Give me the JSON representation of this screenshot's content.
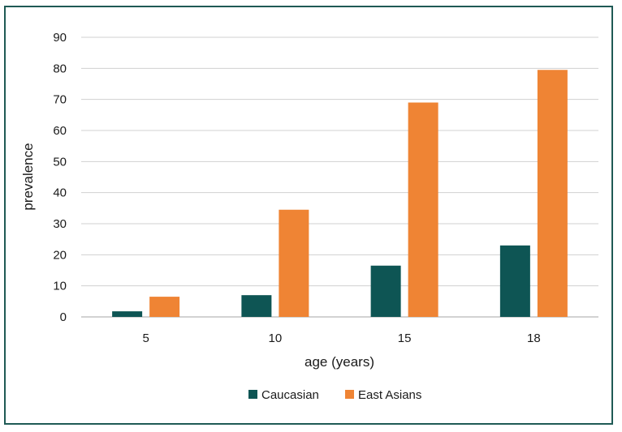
{
  "chart_data": {
    "type": "bar",
    "categories": [
      "5",
      "10",
      "15",
      "18"
    ],
    "series": [
      {
        "name": "Caucasian",
        "color": "#0e5554",
        "values": [
          1.8,
          7,
          16.5,
          23
        ]
      },
      {
        "name": "East Asians",
        "color": "#ef8434",
        "values": [
          6.5,
          34.5,
          69,
          79.5
        ]
      }
    ],
    "xlabel": "age (years)",
    "ylabel": "prevalence",
    "ylim": [
      0,
      90
    ],
    "yticks": [
      "0",
      "10",
      "20",
      "30",
      "40",
      "50",
      "60",
      "70",
      "80",
      "90"
    ],
    "grid": true,
    "legend": "bottom-center"
  }
}
